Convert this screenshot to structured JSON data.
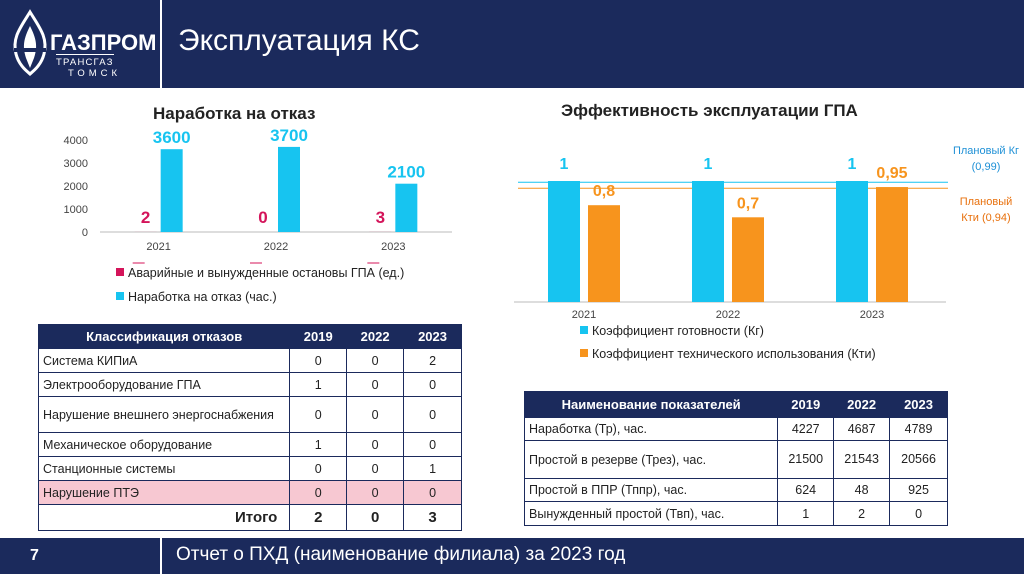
{
  "header": {
    "logo_main": "ГАЗПРОМ",
    "logo_sub": "ТРАНСГАЗ",
    "logo_city": "ТОМСК",
    "title": "Эксплуатация КС"
  },
  "footer": {
    "page_number": "7",
    "text": "Отчет о ПХД (наименование филиала) за 2023 год"
  },
  "colors": {
    "navy": "#1b2a5c",
    "cyan": "#17c4f0",
    "orange": "#f7941d",
    "crimson": "#d4145a",
    "highlight": "#f7c8d2"
  },
  "chart_data": [
    {
      "type": "bar",
      "title": "Наработка на отказ",
      "categories": [
        "2021",
        "2022",
        "2023"
      ],
      "series": [
        {
          "name": "Аварийные и вынужденные остановы ГПА (ед.)",
          "values": [
            2,
            0,
            3
          ],
          "color": "#d4145a"
        },
        {
          "name": "Наработка на отказ (час.)",
          "values": [
            3600,
            3700,
            2100
          ],
          "color": "#17c4f0"
        }
      ],
      "yticks": [
        "0",
        "1000",
        "2000",
        "3000",
        "4000"
      ],
      "ylim": [
        0,
        4000
      ],
      "legend": "bottom"
    },
    {
      "type": "bar",
      "title": "Эффективность эксплуатации ГПА",
      "categories": [
        "2021",
        "2022",
        "2023"
      ],
      "series": [
        {
          "name": "Коэффициент готовности (Кг)",
          "values": [
            1,
            1,
            1
          ],
          "labels": [
            "1",
            "1",
            "1"
          ],
          "color": "#17c4f0"
        },
        {
          "name": "Коэффициент технического использования (Кти)",
          "values": [
            0.8,
            0.7,
            0.95
          ],
          "labels": [
            "0,8",
            "0,7",
            "0,95"
          ],
          "color": "#f7941d"
        }
      ],
      "reference_lines": [
        {
          "label": "Плановый Кг (0,99)",
          "value": 0.99,
          "color": "#17c4f0"
        },
        {
          "label": "Плановый Кти (0,94)",
          "value": 0.94,
          "color": "#f7941d"
        }
      ],
      "ylim": [
        0,
        1.15
      ],
      "legend": "bottom"
    }
  ],
  "left_chart_legend": [
    "Аварийные и вынужденные остановы ГПА (ед.)",
    "Наработка на отказ (час.)"
  ],
  "right_chart_legend": [
    "Коэффициент готовности (Кг)",
    "Коэффициент технического использования (Кти)"
  ],
  "ref_labels": {
    "kg_line1": "Плановый Кг",
    "kg_line2": "(0,99)",
    "kti_line1": "Плановый",
    "kti_line2": "Кти (0,94)"
  },
  "failures_table": {
    "headers": [
      "Классификация отказов",
      "2019",
      "2022",
      "2023"
    ],
    "rows": [
      {
        "label": "Система КИПиА",
        "values": [
          "0",
          "0",
          "2"
        ]
      },
      {
        "label": "Электрооборудование ГПА",
        "values": [
          "1",
          "0",
          "0"
        ]
      },
      {
        "label": "Нарушение внешнего энергоснабжения",
        "values": [
          "0",
          "0",
          "0"
        ]
      },
      {
        "label": "Механическое оборудование",
        "values": [
          "1",
          "0",
          "0"
        ]
      },
      {
        "label": "Станционные системы",
        "values": [
          "0",
          "0",
          "1"
        ]
      },
      {
        "label": "Нарушение ПТЭ",
        "values": [
          "0",
          "0",
          "0"
        ]
      }
    ],
    "total": {
      "label": "Итого",
      "values": [
        "2",
        "0",
        "3"
      ]
    }
  },
  "indicators_table": {
    "headers": [
      "Наименование показателей",
      "2019",
      "2022",
      "2023"
    ],
    "rows": [
      {
        "label": "Наработка (Тр), час.",
        "values": [
          "4227",
          "4687",
          "4789"
        ]
      },
      {
        "label": "Простой в резерве (Трез), час.",
        "values": [
          "21500",
          "21543",
          "20566"
        ]
      },
      {
        "label": "Простой в ППР (Тппр), час.",
        "values": [
          "624",
          "48",
          "925"
        ]
      },
      {
        "label": "Вынужденный простой (Твп), час.",
        "values": [
          "1",
          "2",
          "0"
        ]
      }
    ]
  }
}
